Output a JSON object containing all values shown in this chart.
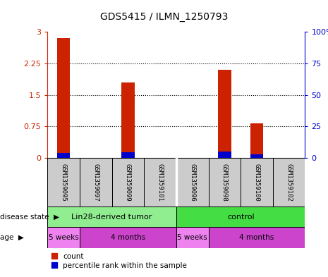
{
  "title": "GDS5415 / ILMN_1250793",
  "samples": [
    "GSM1359095",
    "GSM1359097",
    "GSM1359099",
    "GSM1359101",
    "GSM1359096",
    "GSM1359098",
    "GSM1359100",
    "GSM1359102"
  ],
  "red_values": [
    2.85,
    0.0,
    1.8,
    0.0,
    0.0,
    2.1,
    0.82,
    0.0
  ],
  "blue_values": [
    0.12,
    0.0,
    0.13,
    0.0,
    0.0,
    0.15,
    0.08,
    0.0
  ],
  "ylim_left": [
    0,
    3
  ],
  "ylim_right": [
    0,
    100
  ],
  "yticks_left": [
    0,
    0.75,
    1.5,
    2.25,
    3
  ],
  "yticks_right": [
    0,
    25,
    50,
    75,
    100
  ],
  "ytick_labels_left": [
    "0",
    "0.75",
    "1.5",
    "2.25",
    "3"
  ],
  "ytick_labels_right": [
    "0",
    "25",
    "50",
    "75",
    "100%"
  ],
  "disease_state_groups": [
    {
      "label": "Lin28-derived tumor",
      "start": 0,
      "end": 4,
      "color": "#90EE90"
    },
    {
      "label": "control",
      "start": 4,
      "end": 8,
      "color": "#44DD44"
    }
  ],
  "age_groups": [
    {
      "label": "5 weeks",
      "start": 0,
      "end": 1,
      "color": "#EE82EE"
    },
    {
      "label": "4 months",
      "start": 1,
      "end": 4,
      "color": "#CC44CC"
    },
    {
      "label": "5 weeks",
      "start": 4,
      "end": 5,
      "color": "#EE82EE"
    },
    {
      "label": "4 months",
      "start": 5,
      "end": 8,
      "color": "#CC44CC"
    }
  ],
  "bar_red_color": "#CC2200",
  "bar_blue_color": "#0000CC",
  "sample_box_color": "#CCCCCC",
  "left_axis_color": "#CC2200",
  "right_axis_color": "#0000CC",
  "legend_count_color": "#CC2200",
  "legend_pct_color": "#0000CC",
  "bg_color": "#FFFFFF"
}
